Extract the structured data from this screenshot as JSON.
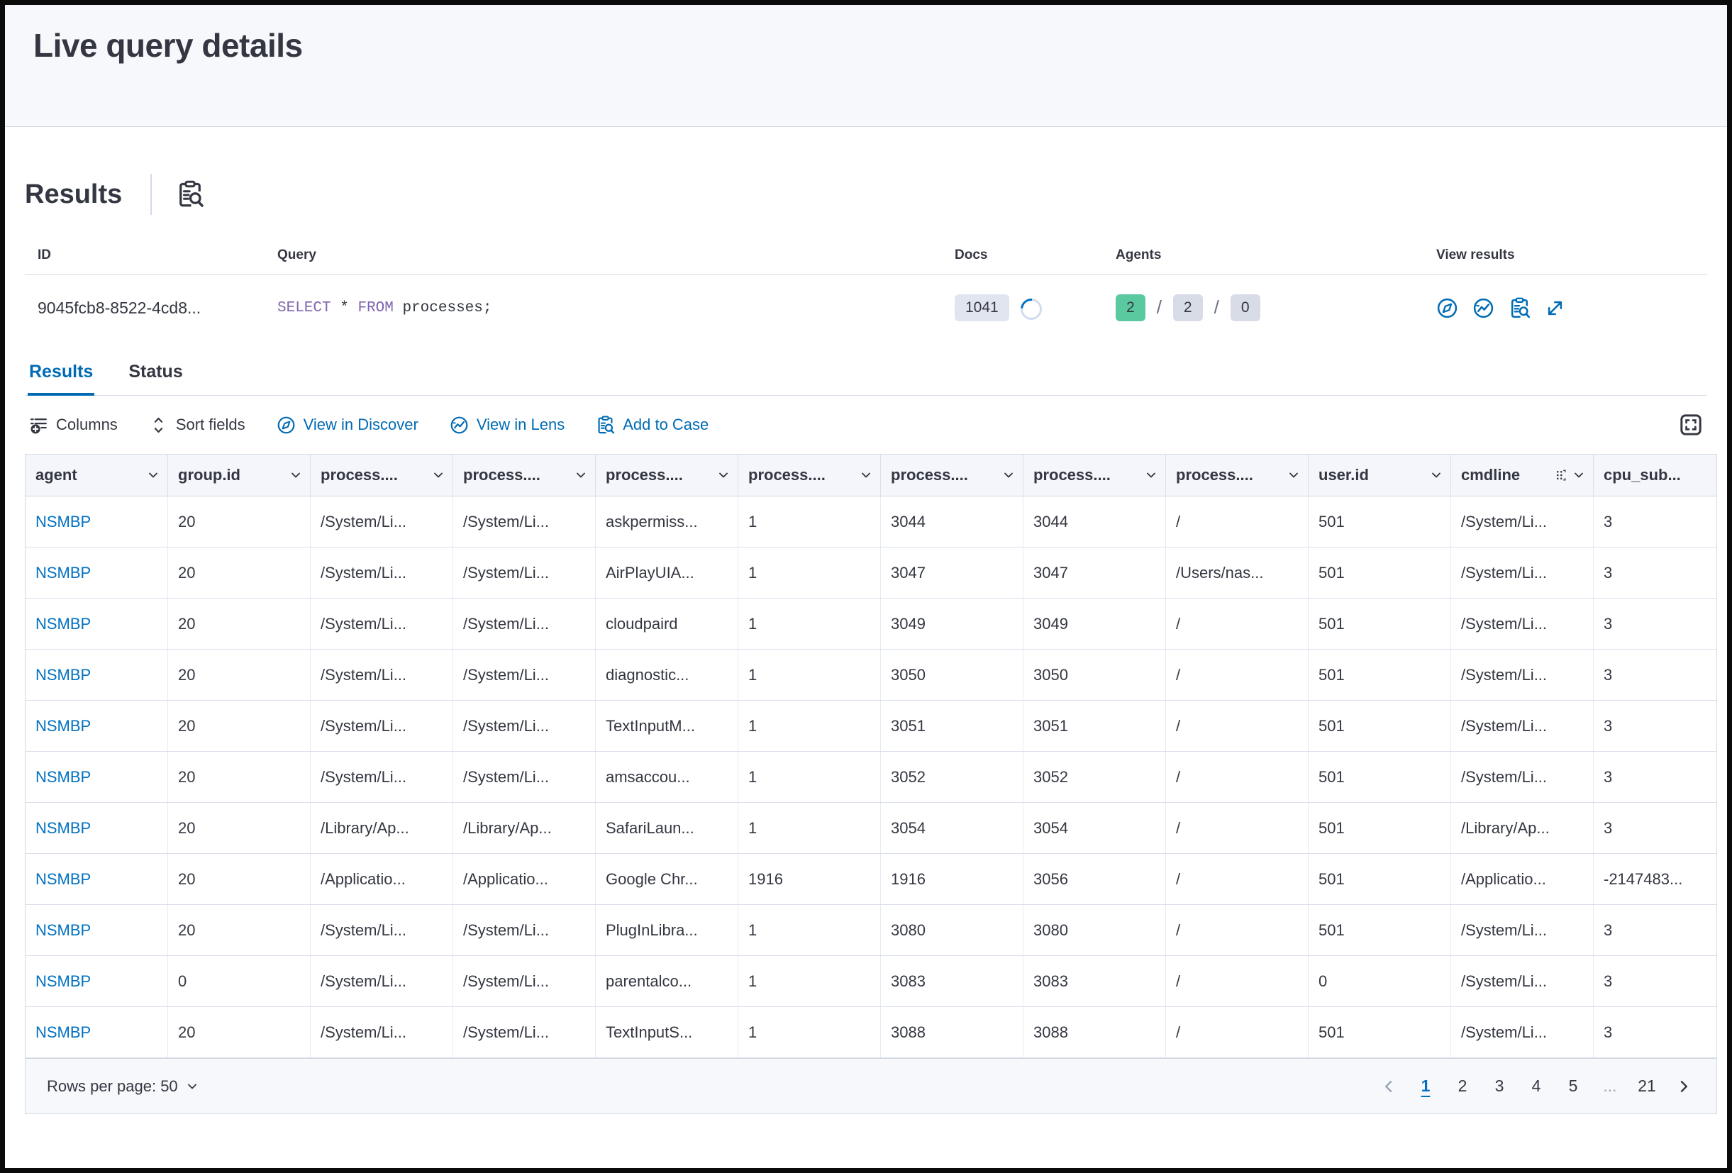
{
  "page": {
    "title": "Live query details"
  },
  "results_section": {
    "heading": "Results",
    "summary": {
      "columns": {
        "id": "ID",
        "query": "Query",
        "docs": "Docs",
        "agents": "Agents",
        "view_results": "View results"
      },
      "row": {
        "id": "9045fcb8-8522-4cd8...",
        "query": {
          "kw1": "SELECT",
          "star": " * ",
          "kw2": "FROM",
          "rest": " processes;"
        },
        "docs_count": "1041",
        "agents": {
          "success": "2",
          "total": "2",
          "failed": "0",
          "separator": "/"
        }
      }
    }
  },
  "tabs": [
    {
      "label": "Results",
      "active": true
    },
    {
      "label": "Status",
      "active": false
    }
  ],
  "toolbar": {
    "columns_label": "Columns",
    "sort_label": "Sort fields",
    "discover_label": "View in Discover",
    "lens_label": "View in Lens",
    "case_label": "Add to Case"
  },
  "grid": {
    "columns": [
      {
        "label": "agent"
      },
      {
        "label": "group.id"
      },
      {
        "label": "process...."
      },
      {
        "label": "process...."
      },
      {
        "label": "process...."
      },
      {
        "label": "process...."
      },
      {
        "label": "process...."
      },
      {
        "label": "process...."
      },
      {
        "label": "process...."
      },
      {
        "label": "user.id"
      },
      {
        "label": "cmdline",
        "drag": true
      },
      {
        "label": "cpu_sub..."
      }
    ],
    "rows": [
      [
        "NSMBP",
        "20",
        "/System/Li...",
        "/System/Li...",
        "askpermiss...",
        "1",
        "3044",
        "3044",
        "/",
        "501",
        "/System/Li...",
        "3"
      ],
      [
        "NSMBP",
        "20",
        "/System/Li...",
        "/System/Li...",
        "AirPlayUIA...",
        "1",
        "3047",
        "3047",
        "/Users/nas...",
        "501",
        "/System/Li...",
        "3"
      ],
      [
        "NSMBP",
        "20",
        "/System/Li...",
        "/System/Li...",
        "cloudpaird",
        "1",
        "3049",
        "3049",
        "/",
        "501",
        "/System/Li...",
        "3"
      ],
      [
        "NSMBP",
        "20",
        "/System/Li...",
        "/System/Li...",
        "diagnostic...",
        "1",
        "3050",
        "3050",
        "/",
        "501",
        "/System/Li...",
        "3"
      ],
      [
        "NSMBP",
        "20",
        "/System/Li...",
        "/System/Li...",
        "TextInputM...",
        "1",
        "3051",
        "3051",
        "/",
        "501",
        "/System/Li...",
        "3"
      ],
      [
        "NSMBP",
        "20",
        "/System/Li...",
        "/System/Li...",
        "amsaccou...",
        "1",
        "3052",
        "3052",
        "/",
        "501",
        "/System/Li...",
        "3"
      ],
      [
        "NSMBP",
        "20",
        "/Library/Ap...",
        "/Library/Ap...",
        "SafariLaun...",
        "1",
        "3054",
        "3054",
        "/",
        "501",
        "/Library/Ap...",
        "3"
      ],
      [
        "NSMBP",
        "20",
        "/Applicatio...",
        "/Applicatio...",
        "Google Chr...",
        "1916",
        "1916",
        "3056",
        "/",
        "501",
        "/Applicatio...",
        "-2147483..."
      ],
      [
        "NSMBP",
        "20",
        "/System/Li...",
        "/System/Li...",
        "PlugInLibra...",
        "1",
        "3080",
        "3080",
        "/",
        "501",
        "/System/Li...",
        "3"
      ],
      [
        "NSMBP",
        "0",
        "/System/Li...",
        "/System/Li...",
        "parentalco...",
        "1",
        "3083",
        "3083",
        "/",
        "0",
        "/System/Li...",
        "3"
      ],
      [
        "NSMBP",
        "20",
        "/System/Li...",
        "/System/Li...",
        "TextInputS...",
        "1",
        "3088",
        "3088",
        "/",
        "501",
        "/System/Li...",
        "3"
      ]
    ]
  },
  "pagination": {
    "rows_per_page_label": "Rows per page: 50",
    "pages": [
      {
        "label": "1",
        "state": "active"
      },
      {
        "label": "2"
      },
      {
        "label": "3"
      },
      {
        "label": "4"
      },
      {
        "label": "5"
      },
      {
        "label": "...",
        "state": "ellipsis"
      },
      {
        "label": "21"
      }
    ]
  },
  "colors": {
    "primary_blue": "#006bb4",
    "link_blue": "#0071c2",
    "success_badge": "#5bc9a0",
    "gray_badge": "#d8dce7",
    "sql_keyword": "#8064af",
    "header_bg": "#f7f8fc",
    "grid_header_bg": "#f4f6fb",
    "border": "#d3dae6"
  }
}
